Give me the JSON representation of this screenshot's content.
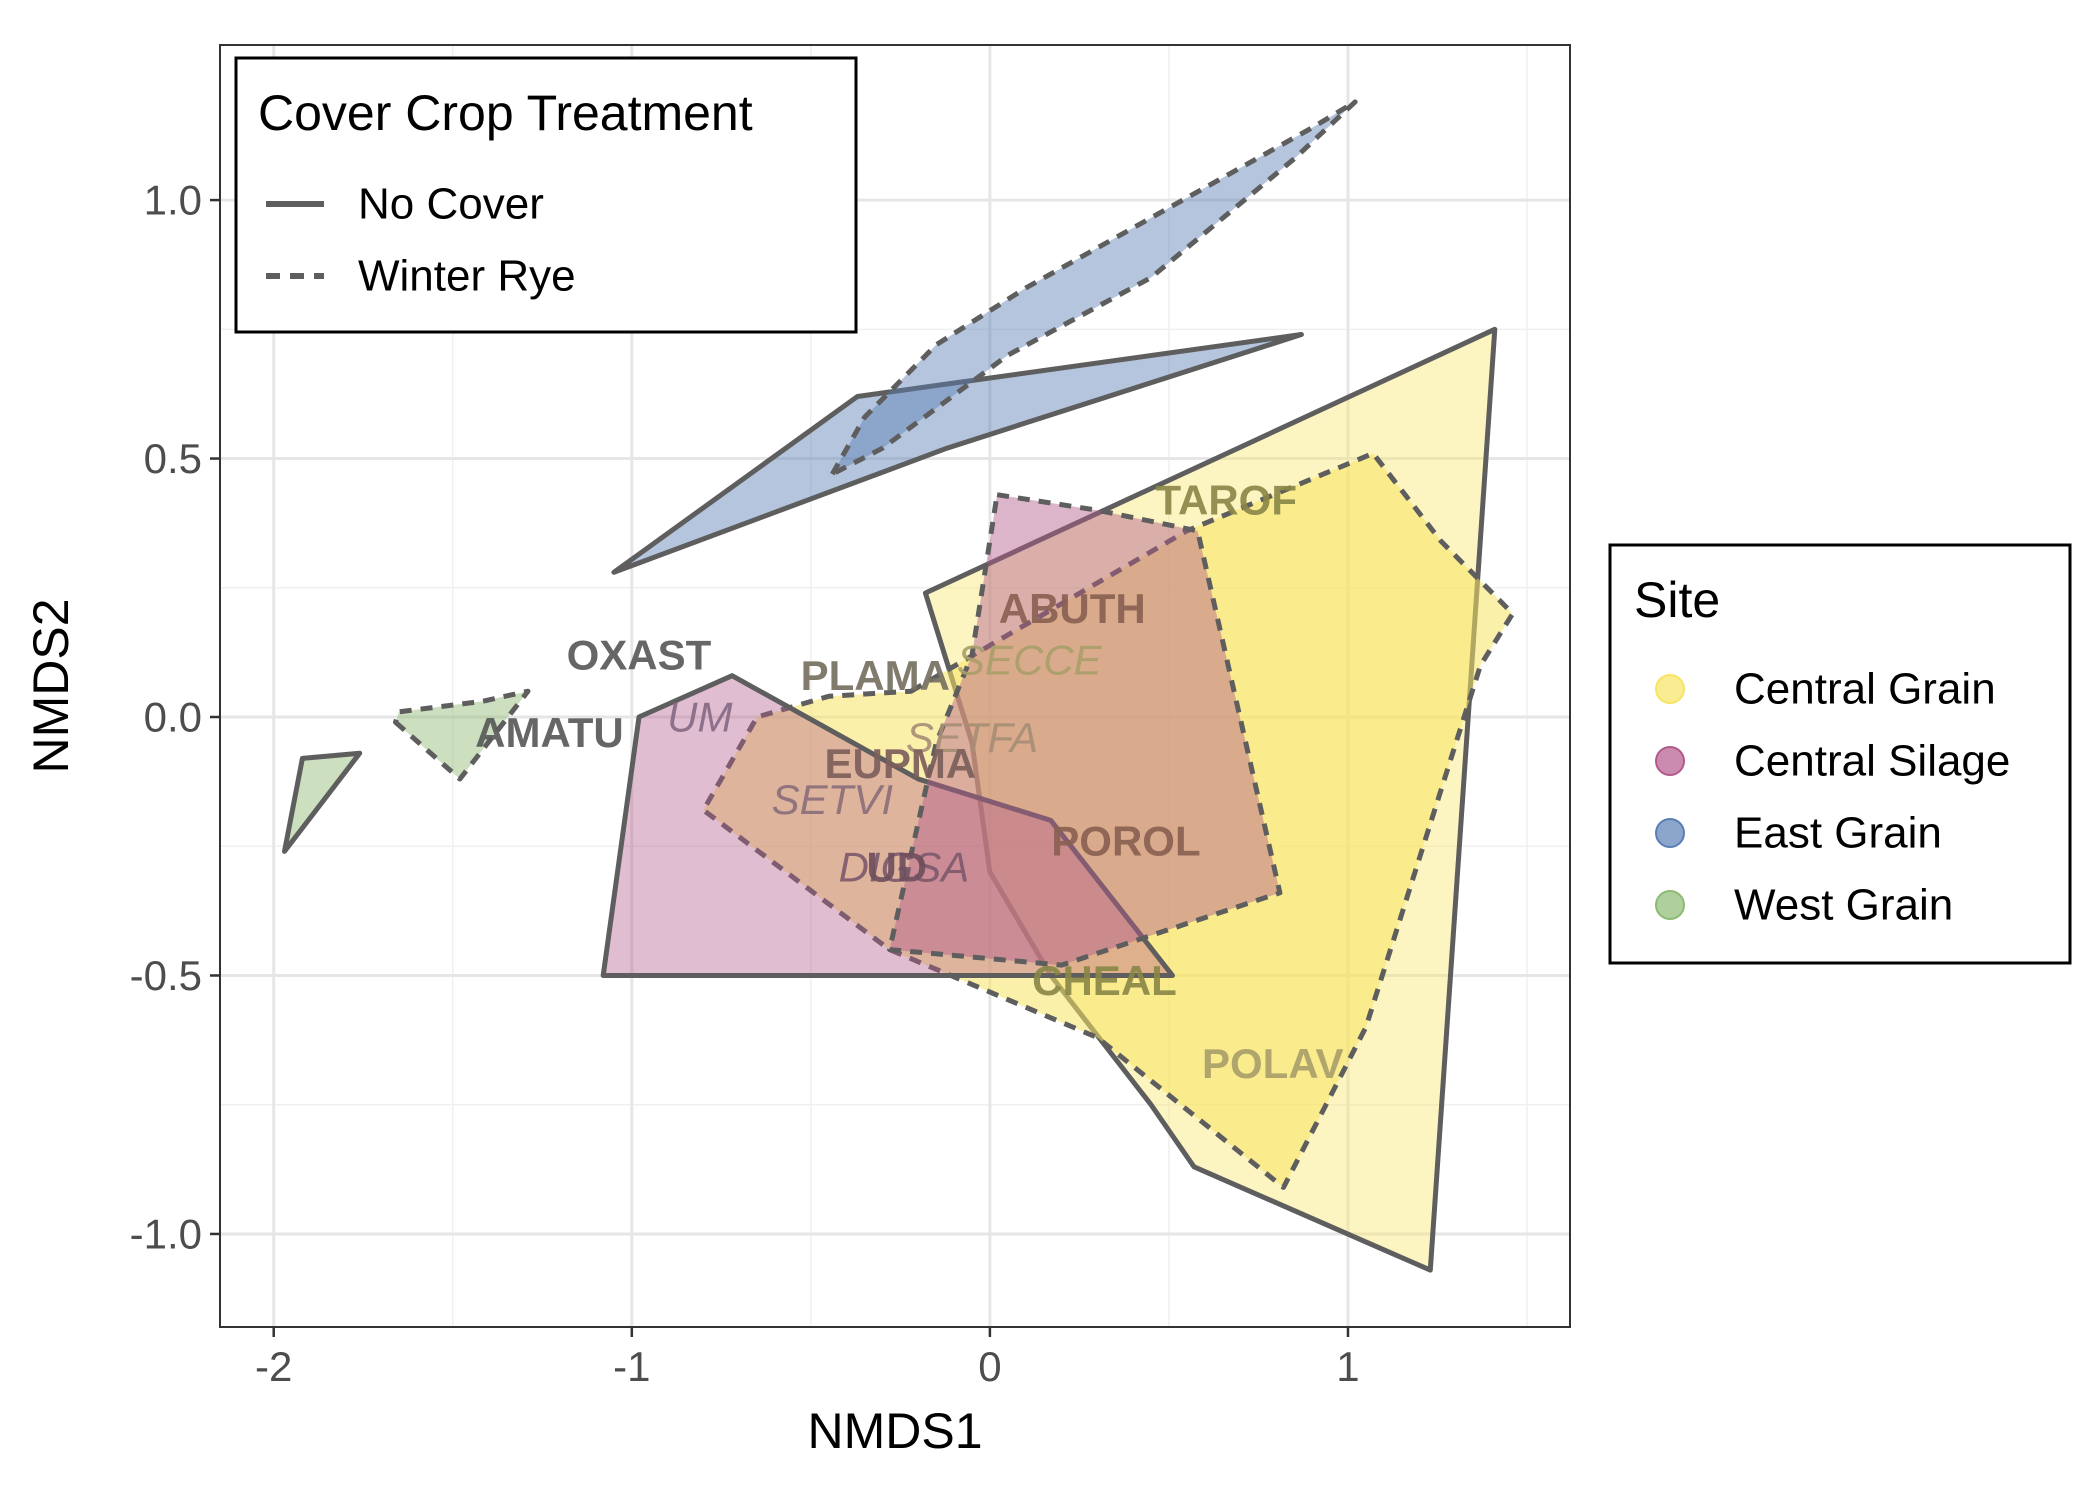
{
  "chart_data": {
    "type": "scatter",
    "subtype": "nmds-ordination-hulls",
    "xlabel": "NMDS1",
    "ylabel": "NMDS2",
    "xlim": [
      -2.15,
      1.62
    ],
    "ylim": [
      -1.18,
      1.3
    ],
    "x_ticks": [
      -2,
      -1,
      0,
      1
    ],
    "x_tick_labels": [
      "-2",
      "-1",
      "0",
      "1"
    ],
    "y_ticks": [
      -1.0,
      -0.5,
      0.0,
      0.5,
      1.0
    ],
    "y_tick_labels": [
      "-1.0",
      "-0.5",
      "0.0",
      "0.5",
      "1.0"
    ],
    "grid": true,
    "linetype_legend": {
      "title": "Cover Crop Treatment",
      "placement": "top-left inside",
      "items": [
        {
          "label": "No Cover",
          "linetype": "solid"
        },
        {
          "label": "Winter Rye",
          "linetype": "dashed"
        }
      ]
    },
    "fill_legend": {
      "title": "Site",
      "placement": "right",
      "items": [
        {
          "label": "Central Grain",
          "color": "#f7e463"
        },
        {
          "label": "Central Silage",
          "color": "#b35a8c"
        },
        {
          "label": "East Grain",
          "color": "#5b7fb4"
        },
        {
          "label": "West Grain",
          "color": "#8dba74"
        }
      ]
    },
    "hulls": [
      {
        "site": "East Grain",
        "treatment": "No Cover",
        "color": "#5b7fb4",
        "opacity": 0.45,
        "points": [
          [
            -1.05,
            0.28
          ],
          [
            -0.37,
            0.62
          ],
          [
            0.87,
            0.74
          ],
          [
            -0.12,
            0.52
          ]
        ]
      },
      {
        "site": "East Grain",
        "treatment": "Winter Rye",
        "color": "#5b7fb4",
        "opacity": 0.45,
        "points": [
          [
            -0.44,
            0.47
          ],
          [
            -0.35,
            0.58
          ],
          [
            -0.15,
            0.72
          ],
          [
            0.1,
            0.83
          ],
          [
            0.9,
            1.14
          ],
          [
            1.02,
            1.19
          ],
          [
            0.85,
            1.08
          ],
          [
            0.45,
            0.85
          ],
          [
            0.05,
            0.7
          ],
          [
            -0.3,
            0.52
          ]
        ]
      },
      {
        "site": "West Grain",
        "treatment": "No Cover",
        "color": "#8dba74",
        "opacity": 0.45,
        "points": [
          [
            -1.97,
            -0.26
          ],
          [
            -1.92,
            -0.08
          ],
          [
            -1.76,
            -0.07
          ]
        ]
      },
      {
        "site": "West Grain",
        "treatment": "Winter Rye",
        "color": "#8dba74",
        "opacity": 0.45,
        "points": [
          [
            -1.66,
            -0.01
          ],
          [
            -1.48,
            -0.12
          ],
          [
            -1.29,
            0.05
          ],
          [
            -1.42,
            0.03
          ],
          [
            -1.65,
            0.01
          ]
        ]
      },
      {
        "site": "Central Grain",
        "treatment": "No Cover",
        "color": "#f7e463",
        "opacity": 0.4,
        "points": [
          [
            -0.18,
            0.24
          ],
          [
            1.41,
            0.75
          ],
          [
            1.23,
            -1.07
          ],
          [
            0.57,
            -0.87
          ],
          [
            0.45,
            -0.75
          ],
          [
            0.17,
            -0.5
          ],
          [
            0.0,
            -0.3
          ],
          [
            -0.05,
            -0.05
          ]
        ]
      },
      {
        "site": "Central Grain",
        "treatment": "Winter Rye",
        "color": "#f7e463",
        "opacity": 0.55,
        "points": [
          [
            -0.22,
            0.05
          ],
          [
            0.55,
            0.36
          ],
          [
            1.07,
            0.51
          ],
          [
            1.26,
            0.34
          ],
          [
            1.46,
            0.2
          ],
          [
            1.37,
            0.1
          ],
          [
            1.05,
            -0.6
          ],
          [
            0.82,
            -0.91
          ],
          [
            0.3,
            -0.62
          ],
          [
            -0.28,
            -0.45
          ],
          [
            -0.8,
            -0.18
          ],
          [
            -0.65,
            0.0
          ],
          [
            -0.45,
            0.04
          ]
        ]
      },
      {
        "site": "Central Silage",
        "treatment": "No Cover",
        "color": "#b35a8c",
        "opacity": 0.4,
        "points": [
          [
            -1.08,
            -0.5
          ],
          [
            0.51,
            -0.5
          ],
          [
            0.17,
            -0.2
          ],
          [
            -0.2,
            -0.12
          ],
          [
            -0.72,
            0.08
          ],
          [
            -0.98,
            0.0
          ]
        ]
      },
      {
        "site": "Central Silage",
        "treatment": "Winter Rye",
        "color": "#b35a8c",
        "opacity": 0.45,
        "points": [
          [
            0.02,
            0.43
          ],
          [
            0.3,
            0.4
          ],
          [
            0.58,
            0.36
          ],
          [
            0.81,
            -0.34
          ],
          [
            0.2,
            -0.48
          ],
          [
            -0.28,
            -0.45
          ],
          [
            -0.15,
            -0.05
          ],
          [
            -0.05,
            0.12
          ]
        ]
      }
    ],
    "species_labels": [
      {
        "text": "TAROF",
        "x": 0.66,
        "y": 0.42,
        "style": "bold",
        "color": "#8a8748"
      },
      {
        "text": "ABUTH",
        "x": 0.23,
        "y": 0.21,
        "style": "bold",
        "color": "#8a6152"
      },
      {
        "text": "OXAST",
        "x": -0.98,
        "y": 0.12,
        "style": "bold",
        "color": "#595959"
      },
      {
        "text": "PLAMA",
        "x": -0.32,
        "y": 0.08,
        "style": "bold",
        "color": "#767062"
      },
      {
        "text": "SECCE",
        "x": 0.11,
        "y": 0.11,
        "style": "italic",
        "color": "#a9a06a"
      },
      {
        "text": "UM",
        "x": -0.81,
        "y": 0.0,
        "style": "italic",
        "color": "#866a84"
      },
      {
        "text": "AMATU",
        "x": -1.23,
        "y": -0.03,
        "style": "bold",
        "color": "#595959"
      },
      {
        "text": "SETFA",
        "x": -0.05,
        "y": -0.04,
        "style": "italic",
        "color": "#a68e75"
      },
      {
        "text": "EUPMA",
        "x": -0.25,
        "y": -0.09,
        "style": "bold",
        "color": "#7c5e5b"
      },
      {
        "text": "SETVI",
        "x": -0.44,
        "y": -0.16,
        "style": "italic",
        "color": "#8a6f79"
      },
      {
        "text": "POROL",
        "x": 0.38,
        "y": -0.24,
        "style": "bold",
        "color": "#8a6152"
      },
      {
        "text": "DIGSA",
        "x": -0.24,
        "y": -0.29,
        "style": "italic",
        "color": "#7e5a6d"
      },
      {
        "text": "UD",
        "x": -0.26,
        "y": -0.29,
        "style": "bold",
        "color": "#6f4f5d"
      },
      {
        "text": "CHEAL",
        "x": 0.32,
        "y": -0.51,
        "style": "bold",
        "color": "#8a8748"
      },
      {
        "text": "POLAV",
        "x": 0.79,
        "y": -0.67,
        "style": "bold",
        "color": "#a9a06a"
      }
    ]
  }
}
